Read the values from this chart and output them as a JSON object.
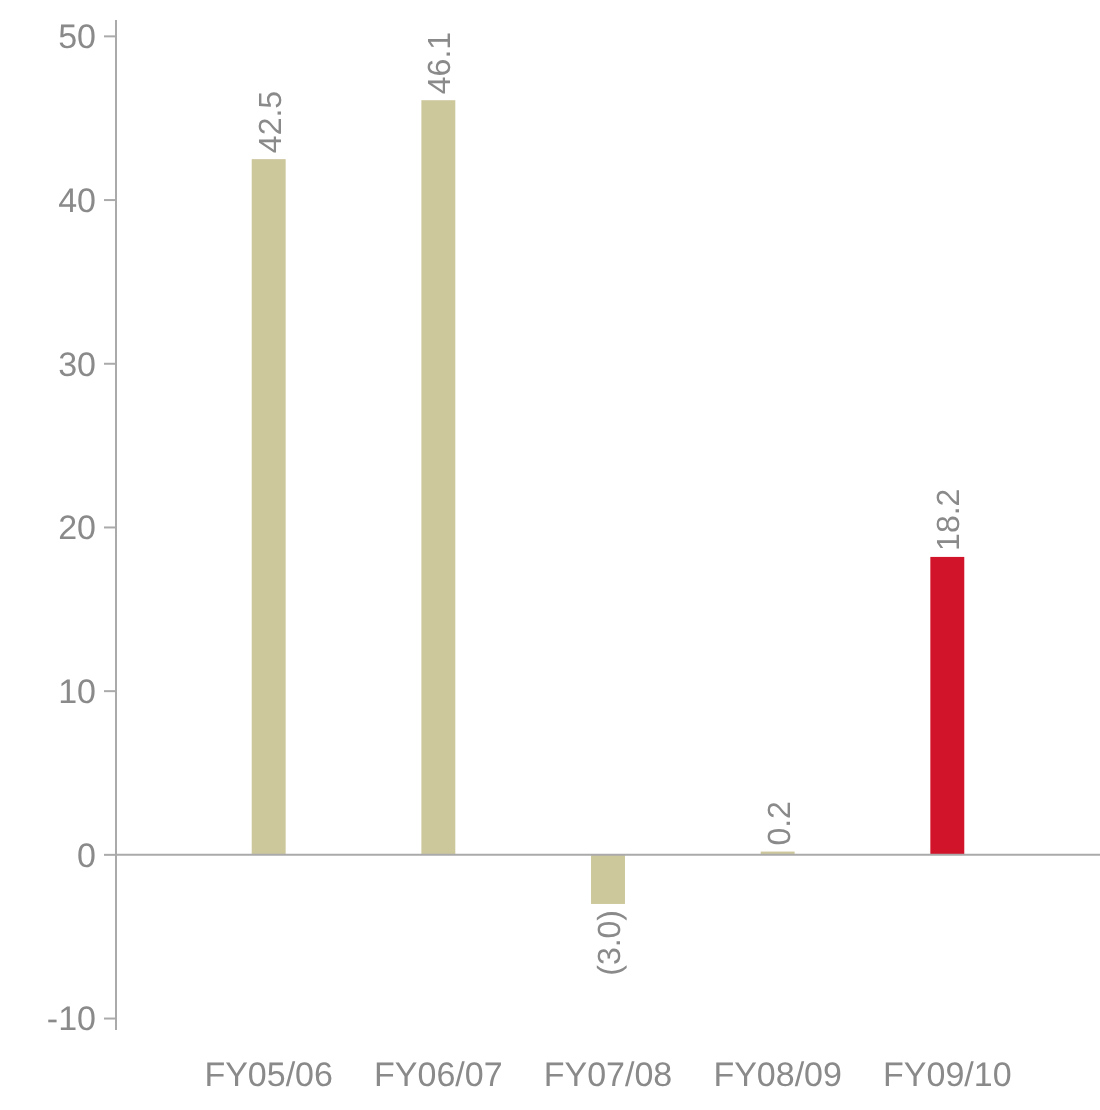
{
  "chart_data": {
    "type": "bar",
    "categories": [
      "FY05/06",
      "FY06/07",
      "FY07/08",
      "FY08/09",
      "FY09/10"
    ],
    "values": [
      42.5,
      46.1,
      -3.0,
      0.2,
      18.2
    ],
    "colors": [
      "#cdc79c",
      "#cdc79c",
      "#cdc79c",
      "#cdc79c",
      "#d2142b"
    ],
    "value_labels": [
      "42.5",
      "46.1",
      "(3.0)",
      "0.2",
      "18.2"
    ],
    "ylim": [
      -10.7,
      51
    ],
    "yticks": [
      -10,
      0,
      10,
      20,
      30,
      40,
      50
    ]
  }
}
